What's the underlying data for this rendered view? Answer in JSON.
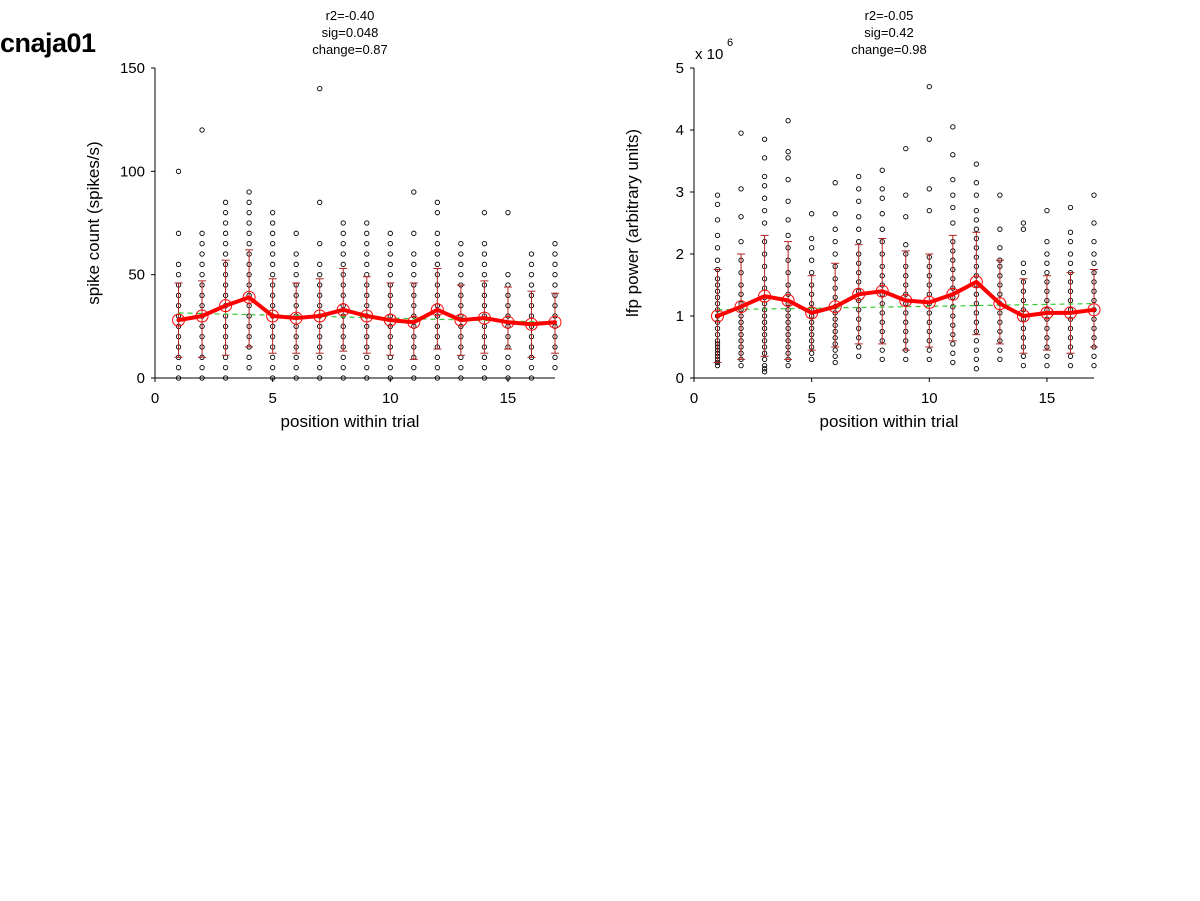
{
  "figure_label": "cnaja01",
  "colors": {
    "mean_line": "#ff0000",
    "errorbar": "#b22222",
    "fit_line": "#33cc33",
    "points": "#000000"
  },
  "chart_data": [
    {
      "type": "scatter",
      "title_lines": [
        "r2=-0.40",
        "sig=0.048",
        "change=0.87"
      ],
      "xlabel": "position within trial",
      "ylabel": "spike count (spikes/s)",
      "exponent_label": "",
      "xlim": [
        0,
        17
      ],
      "ylim": [
        0,
        150
      ],
      "xticks": [
        0,
        5,
        10,
        15
      ],
      "yticks": [
        0,
        50,
        100,
        150
      ],
      "x": [
        1,
        2,
        3,
        4,
        5,
        6,
        7,
        8,
        9,
        10,
        11,
        12,
        13,
        14,
        15,
        16,
        17
      ],
      "mean": [
        28,
        30,
        35,
        39,
        30,
        29,
        30,
        33,
        30,
        28,
        27,
        33,
        28,
        29,
        27,
        26,
        27
      ],
      "error_low": [
        10,
        10,
        11,
        15,
        12,
        12,
        12,
        13,
        12,
        11,
        9,
        14,
        11,
        12,
        14,
        10,
        12
      ],
      "error_high": [
        46,
        47,
        57,
        62,
        48,
        46,
        48,
        53,
        49,
        46,
        46,
        53,
        45,
        47,
        44,
        42,
        41
      ],
      "fit": {
        "x_start": 1,
        "y_start": 31.5,
        "x_end": 17,
        "y_end": 27
      },
      "points": [
        [
          0,
          5,
          10,
          15,
          20,
          25,
          30,
          35,
          40,
          45,
          50,
          55,
          70,
          100
        ],
        [
          0,
          5,
          10,
          15,
          20,
          25,
          30,
          35,
          40,
          45,
          50,
          55,
          60,
          65,
          70,
          120
        ],
        [
          0,
          5,
          10,
          15,
          20,
          25,
          30,
          35,
          40,
          45,
          50,
          55,
          60,
          65,
          70,
          75,
          80,
          85
        ],
        [
          5,
          10,
          15,
          20,
          25,
          30,
          35,
          40,
          45,
          50,
          55,
          60,
          65,
          70,
          75,
          80,
          85,
          90
        ],
        [
          0,
          5,
          10,
          15,
          20,
          25,
          30,
          35,
          40,
          45,
          50,
          55,
          60,
          65,
          70,
          75,
          80
        ],
        [
          0,
          5,
          10,
          15,
          20,
          25,
          30,
          35,
          40,
          45,
          50,
          55,
          60,
          70
        ],
        [
          0,
          5,
          10,
          15,
          20,
          25,
          30,
          35,
          40,
          45,
          50,
          55,
          65,
          85,
          140
        ],
        [
          0,
          5,
          10,
          15,
          20,
          25,
          30,
          35,
          40,
          45,
          50,
          55,
          60,
          65,
          70,
          75
        ],
        [
          0,
          5,
          10,
          15,
          20,
          25,
          30,
          35,
          40,
          45,
          50,
          55,
          60,
          65,
          70,
          75
        ],
        [
          0,
          5,
          10,
          15,
          20,
          25,
          30,
          35,
          40,
          45,
          50,
          55,
          60,
          65,
          70
        ],
        [
          0,
          5,
          10,
          15,
          20,
          25,
          30,
          35,
          40,
          45,
          50,
          55,
          60,
          70,
          90
        ],
        [
          0,
          5,
          10,
          15,
          20,
          25,
          30,
          35,
          40,
          45,
          50,
          55,
          60,
          65,
          70,
          80,
          85
        ],
        [
          0,
          5,
          10,
          15,
          20,
          25,
          30,
          35,
          40,
          45,
          50,
          55,
          60,
          65
        ],
        [
          0,
          5,
          10,
          15,
          20,
          25,
          30,
          35,
          40,
          45,
          50,
          55,
          60,
          65,
          80
        ],
        [
          0,
          5,
          10,
          15,
          20,
          25,
          30,
          35,
          40,
          45,
          50,
          80
        ],
        [
          0,
          5,
          10,
          15,
          20,
          25,
          30,
          35,
          40,
          45,
          50,
          55,
          60
        ],
        [
          5,
          10,
          15,
          20,
          25,
          30,
          35,
          40,
          45,
          50,
          55,
          60,
          65
        ]
      ]
    },
    {
      "type": "scatter",
      "title_lines": [
        "r2=-0.05",
        "sig=0.42",
        "change=0.98"
      ],
      "xlabel": "position within trial",
      "ylabel": "lfp power (arbitrary units)",
      "exponent_label": "x 10",
      "exponent_power": "6",
      "xlim": [
        0,
        17
      ],
      "ylim": [
        0,
        5
      ],
      "xticks": [
        0,
        5,
        10,
        15
      ],
      "yticks": [
        0,
        1,
        2,
        3,
        4,
        5
      ],
      "x": [
        1,
        2,
        3,
        4,
        5,
        6,
        7,
        8,
        9,
        10,
        11,
        12,
        13,
        14,
        15,
        16,
        17
      ],
      "mean": [
        1.0,
        1.15,
        1.32,
        1.25,
        1.05,
        1.15,
        1.35,
        1.4,
        1.25,
        1.22,
        1.35,
        1.55,
        1.2,
        1.0,
        1.05,
        1.05,
        1.1
      ],
      "error_low": [
        0.25,
        0.3,
        0.35,
        0.3,
        0.45,
        0.5,
        0.55,
        0.55,
        0.45,
        0.5,
        0.6,
        0.7,
        0.55,
        0.4,
        0.45,
        0.4,
        0.5
      ],
      "error_high": [
        1.75,
        2.0,
        2.3,
        2.2,
        1.65,
        1.85,
        2.15,
        2.25,
        2.05,
        2.0,
        2.3,
        2.35,
        1.9,
        1.6,
        1.65,
        1.7,
        1.75
      ],
      "fit": {
        "x_start": 1,
        "y_start": 1.1,
        "x_end": 17,
        "y_end": 1.2
      },
      "points": [
        [
          0.2,
          0.25,
          0.3,
          0.35,
          0.4,
          0.45,
          0.5,
          0.55,
          0.6,
          0.7,
          0.8,
          0.9,
          1.0,
          1.1,
          1.2,
          1.3,
          1.4,
          1.5,
          1.6,
          1.75,
          1.9,
          2.1,
          2.3,
          2.55,
          2.8,
          2.95
        ],
        [
          0.2,
          0.3,
          0.4,
          0.5,
          0.6,
          0.7,
          0.8,
          0.9,
          1.0,
          1.1,
          1.2,
          1.35,
          1.5,
          1.7,
          1.9,
          2.2,
          2.6,
          3.05,
          3.95
        ],
        [
          0.1,
          0.15,
          0.2,
          0.3,
          0.4,
          0.5,
          0.6,
          0.7,
          0.8,
          0.9,
          1.0,
          1.1,
          1.2,
          1.3,
          1.45,
          1.6,
          1.8,
          2.0,
          2.2,
          2.5,
          2.7,
          2.9,
          3.1,
          3.25,
          3.55,
          3.85
        ],
        [
          0.2,
          0.3,
          0.4,
          0.5,
          0.6,
          0.7,
          0.8,
          0.9,
          1.0,
          1.1,
          1.2,
          1.35,
          1.5,
          1.7,
          1.9,
          2.1,
          2.3,
          2.55,
          2.85,
          3.2,
          3.55,
          3.65,
          4.15
        ],
        [
          0.3,
          0.4,
          0.5,
          0.6,
          0.7,
          0.8,
          0.9,
          1.0,
          1.1,
          1.2,
          1.35,
          1.5,
          1.7,
          1.9,
          2.1,
          2.25,
          2.65
        ],
        [
          0.25,
          0.35,
          0.45,
          0.55,
          0.65,
          0.75,
          0.85,
          0.95,
          1.05,
          1.15,
          1.3,
          1.45,
          1.6,
          1.8,
          2.0,
          2.2,
          2.4,
          2.65,
          3.15
        ],
        [
          0.35,
          0.5,
          0.65,
          0.8,
          0.95,
          1.1,
          1.25,
          1.4,
          1.55,
          1.7,
          1.85,
          2.0,
          2.2,
          2.4,
          2.6,
          2.85,
          3.05,
          3.25
        ],
        [
          0.3,
          0.45,
          0.6,
          0.75,
          0.9,
          1.05,
          1.2,
          1.35,
          1.5,
          1.65,
          1.8,
          2.0,
          2.2,
          2.4,
          2.65,
          2.9,
          3.05,
          3.35
        ],
        [
          0.3,
          0.45,
          0.6,
          0.75,
          0.9,
          1.05,
          1.2,
          1.35,
          1.5,
          1.65,
          1.8,
          2.0,
          2.15,
          2.6,
          2.95,
          3.7
        ],
        [
          0.3,
          0.45,
          0.6,
          0.75,
          0.9,
          1.05,
          1.2,
          1.35,
          1.5,
          1.65,
          1.8,
          1.95,
          2.7,
          3.05,
          3.85,
          4.7
        ],
        [
          0.25,
          0.4,
          0.55,
          0.7,
          0.85,
          1.0,
          1.15,
          1.3,
          1.45,
          1.6,
          1.75,
          1.9,
          2.05,
          2.2,
          2.5,
          2.75,
          2.95,
          3.2,
          3.6,
          4.05
        ],
        [
          0.15,
          0.3,
          0.45,
          0.6,
          0.75,
          0.9,
          1.05,
          1.2,
          1.35,
          1.5,
          1.65,
          1.8,
          1.95,
          2.1,
          2.25,
          2.4,
          2.55,
          2.7,
          2.95,
          3.15,
          3.45
        ],
        [
          0.3,
          0.45,
          0.6,
          0.75,
          0.9,
          1.05,
          1.2,
          1.35,
          1.5,
          1.65,
          1.8,
          1.9,
          2.1,
          2.4,
          2.95
        ],
        [
          0.2,
          0.35,
          0.5,
          0.65,
          0.8,
          0.95,
          1.1,
          1.25,
          1.4,
          1.55,
          1.7,
          1.85,
          2.4,
          2.5
        ],
        [
          0.2,
          0.35,
          0.5,
          0.65,
          0.8,
          0.95,
          1.1,
          1.25,
          1.4,
          1.55,
          1.7,
          1.85,
          2.0,
          2.2,
          2.7
        ],
        [
          0.2,
          0.35,
          0.5,
          0.65,
          0.8,
          0.95,
          1.1,
          1.25,
          1.4,
          1.55,
          1.7,
          1.85,
          2.0,
          2.2,
          2.35,
          2.75
        ],
        [
          0.2,
          0.35,
          0.5,
          0.65,
          0.8,
          0.95,
          1.1,
          1.25,
          1.4,
          1.55,
          1.7,
          1.85,
          2.0,
          2.2,
          2.5,
          2.95
        ]
      ]
    }
  ]
}
